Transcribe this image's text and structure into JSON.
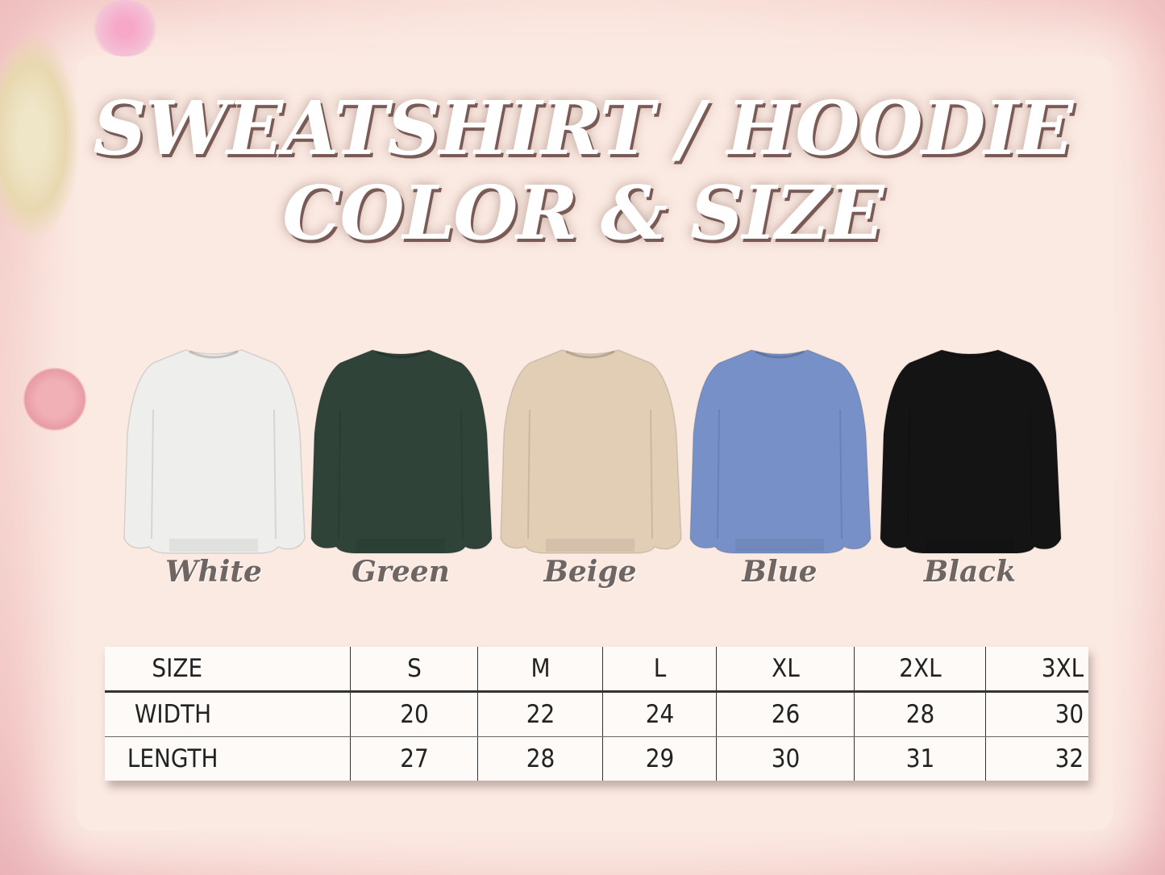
{
  "title": {
    "line1": "SWEATSHIRT / HOODIE",
    "line2": "COLOR & SIZE"
  },
  "colors": [
    {
      "name": "White",
      "hex": "#eeeeec"
    },
    {
      "name": "Green",
      "hex": "#2f4339"
    },
    {
      "name": "Beige",
      "hex": "#e2cdb5"
    },
    {
      "name": "Blue",
      "hex": "#7791c8"
    },
    {
      "name": "Black",
      "hex": "#141414"
    }
  ],
  "size_table": {
    "header": [
      "SIZE",
      "S",
      "M",
      "L",
      "XL",
      "2XL",
      "3XL"
    ],
    "rows": [
      [
        "WIDTH",
        "20",
        "22",
        "24",
        "26",
        "28",
        "30"
      ],
      [
        "LENGTH",
        "27",
        "28",
        "29",
        "30",
        "31",
        "32"
      ]
    ]
  }
}
